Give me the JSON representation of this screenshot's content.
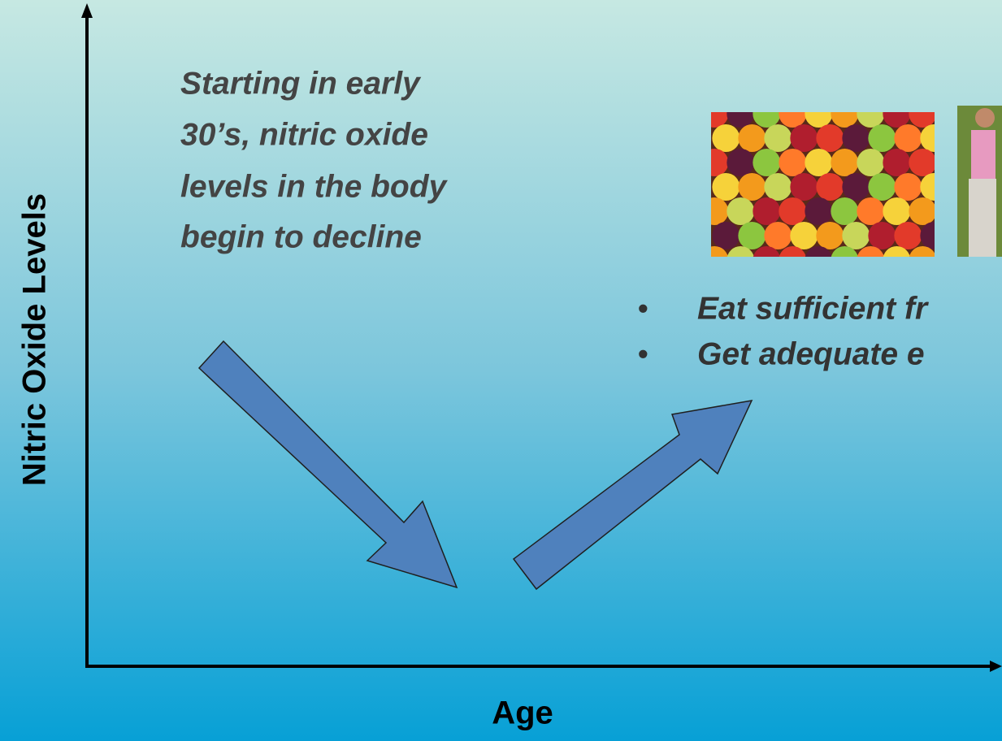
{
  "y_axis_label": "Nitric Oxide Levels",
  "x_axis_label": "Age",
  "decline_text": [
    "Starting in early",
    "30’s, nitric oxide",
    "levels in the body",
    "begin to decline"
  ],
  "bullets": [
    "Eat sufficient fr",
    "Get adequate e"
  ]
}
